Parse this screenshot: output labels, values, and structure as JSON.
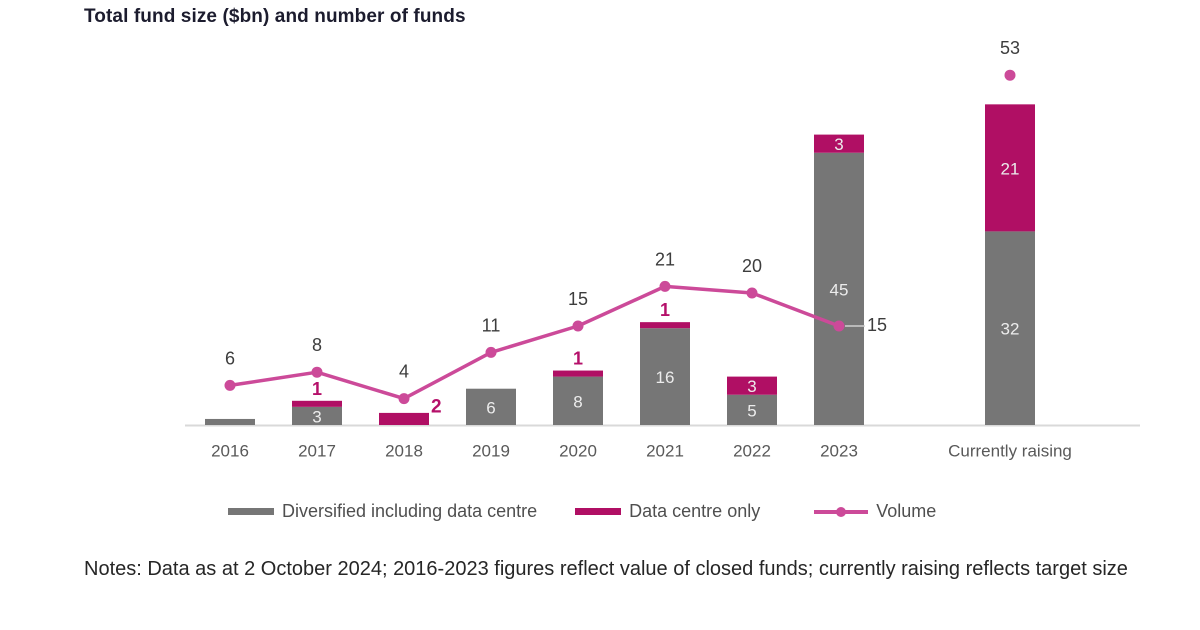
{
  "header": {
    "title": "Total fund size ($bn) and number of funds"
  },
  "legend": {
    "items": [
      {
        "label": "Diversified including data centre",
        "swatch": "gray-bar"
      },
      {
        "label": "Data centre only",
        "swatch": "pink-bar"
      },
      {
        "label": "Volume",
        "swatch": "pink-line-dot"
      }
    ]
  },
  "notes": {
    "text": "Notes: Data as at 2 October 2024; 2016-2023 figures reflect value of closed funds; currently raising reflects target size"
  },
  "colors": {
    "diversified_bar": "#767676",
    "data_centre_bar": "#b00f64",
    "volume_line": "#cc4a99",
    "bar_inner_label": "#ececec",
    "pink_outer_label": "#b5106a",
    "volume_label": "#3d3d3d",
    "axis_label": "#595959",
    "axis_line": "#d9d9d9",
    "leader_line": "#cfcfcf"
  },
  "chart_data": {
    "type": "bar",
    "subtype": "stacked-bars-with-line",
    "title": "Total fund size ($bn) and number of funds",
    "xlabel": "",
    "ylabel": "",
    "grid": false,
    "legend_position": "bottom",
    "categories": [
      "2016",
      "2017",
      "2018",
      "2019",
      "2020",
      "2021",
      "2022",
      "2023",
      "Currently raising"
    ],
    "series": [
      {
        "name": "Diversified including data centre",
        "type": "bar",
        "color": "#767676",
        "values": [
          1,
          3,
          0,
          6,
          8,
          16,
          5,
          45,
          32
        ]
      },
      {
        "name": "Data centre only",
        "type": "bar",
        "color": "#b00f64",
        "values": [
          0,
          1,
          2,
          0,
          1,
          1,
          3,
          3,
          21
        ]
      },
      {
        "name": "Volume",
        "type": "line",
        "color": "#cc4a99",
        "values": [
          6,
          8,
          4,
          11,
          15,
          21,
          20,
          15,
          53
        ]
      }
    ],
    "label_placements": {
      "diversified": [
        "none",
        "inside",
        "none",
        "inside",
        "inside",
        "inside",
        "inside",
        "inside",
        "inside"
      ],
      "data_centre": [
        "none",
        "above",
        "right",
        "none",
        "above",
        "above",
        "inside",
        "inside",
        "inside"
      ],
      "volume": [
        "above",
        "above",
        "above",
        "above",
        "above",
        "above",
        "above",
        "right",
        "above"
      ]
    },
    "line_connected_through_index": 7,
    "bar_axis_max": 53,
    "line_axis_max": 53
  }
}
